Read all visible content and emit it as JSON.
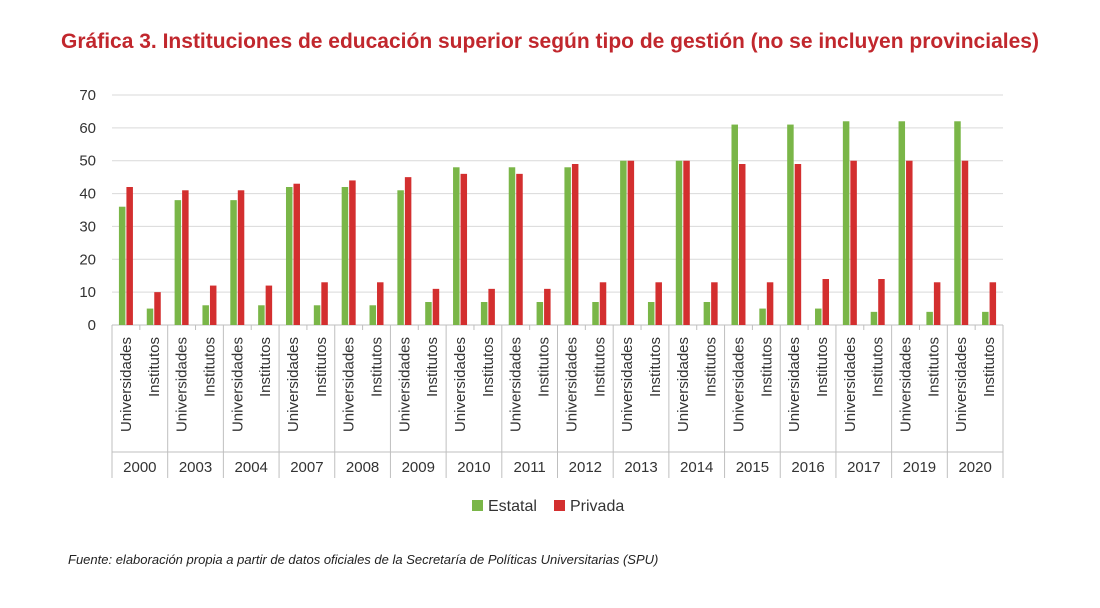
{
  "title": "Gráfica 3. Instituciones de educación superior según tipo de gestión (no se incluyen provinciales)",
  "source": "Fuente: elaboración propia a partir de datos oficiales de la Secretaría de Políticas Universitarias (SPU)",
  "colors": {
    "estatal": "#7ab648",
    "privada": "#d32f2f",
    "title": "#c1272d"
  },
  "chart_data": {
    "type": "bar",
    "ylim": [
      0,
      70
    ],
    "yticks": [
      0,
      10,
      20,
      30,
      40,
      50,
      60,
      70
    ],
    "grid": true,
    "legend_position": "bottom",
    "subcategories": [
      "Universidades",
      "Institutos"
    ],
    "groups": [
      {
        "year": "2000",
        "estatal": [
          36,
          5
        ],
        "privada": [
          42,
          10
        ]
      },
      {
        "year": "2003",
        "estatal": [
          38,
          6
        ],
        "privada": [
          41,
          12
        ]
      },
      {
        "year": "2004",
        "estatal": [
          38,
          6
        ],
        "privada": [
          41,
          12
        ]
      },
      {
        "year": "2007",
        "estatal": [
          42,
          6
        ],
        "privada": [
          43,
          13
        ]
      },
      {
        "year": "2008",
        "estatal": [
          42,
          6
        ],
        "privada": [
          44,
          13
        ]
      },
      {
        "year": "2009",
        "estatal": [
          41,
          7
        ],
        "privada": [
          45,
          11
        ]
      },
      {
        "year": "2010",
        "estatal": [
          48,
          7
        ],
        "privada": [
          46,
          11
        ]
      },
      {
        "year": "2011",
        "estatal": [
          48,
          7
        ],
        "privada": [
          46,
          11
        ]
      },
      {
        "year": "2012",
        "estatal": [
          48,
          7
        ],
        "privada": [
          49,
          13
        ]
      },
      {
        "year": "2013",
        "estatal": [
          50,
          7
        ],
        "privada": [
          50,
          13
        ]
      },
      {
        "year": "2014",
        "estatal": [
          50,
          7
        ],
        "privada": [
          50,
          13
        ]
      },
      {
        "year": "2015",
        "estatal": [
          61,
          5
        ],
        "privada": [
          49,
          13
        ]
      },
      {
        "year": "2016",
        "estatal": [
          61,
          5
        ],
        "privada": [
          49,
          14
        ]
      },
      {
        "year": "2017",
        "estatal": [
          62,
          4
        ],
        "privada": [
          50,
          14
        ]
      },
      {
        "year": "2019",
        "estatal": [
          62,
          4
        ],
        "privada": [
          50,
          13
        ]
      },
      {
        "year": "2020",
        "estatal": [
          62,
          4
        ],
        "privada": [
          50,
          13
        ]
      }
    ],
    "series": [
      {
        "name": "Estatal",
        "key": "estatal"
      },
      {
        "name": "Privada",
        "key": "privada"
      }
    ]
  }
}
